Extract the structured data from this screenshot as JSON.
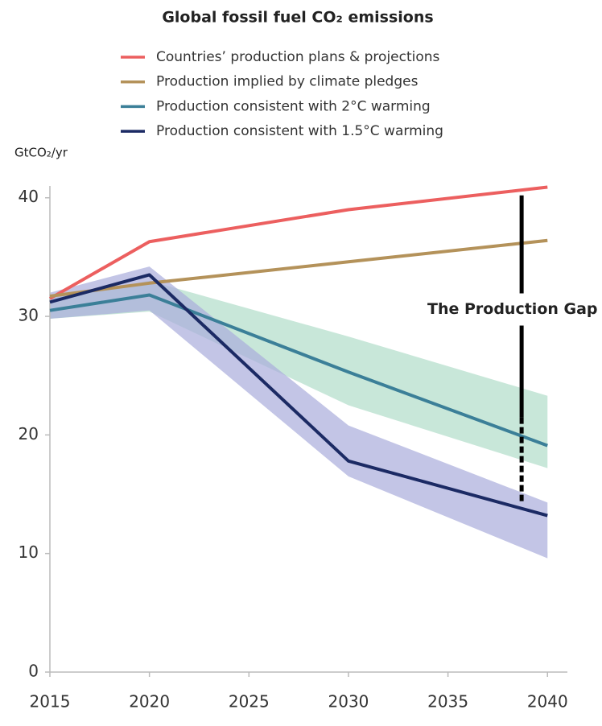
{
  "chart_data": {
    "type": "line",
    "title": "Global fossil fuel CO₂ emissions",
    "y_label": "GtCO₂/yr",
    "x": [
      2015,
      2020,
      2030,
      2040
    ],
    "series": [
      {
        "name": "Countries’ production plans & projections",
        "color": "#ec5f5f",
        "values": [
          31.5,
          36.3,
          39.0,
          40.9
        ]
      },
      {
        "name": "Production implied by  climate pledges",
        "color": "#b4925a",
        "values": [
          31.7,
          32.8,
          34.6,
          36.4
        ]
      },
      {
        "name": "Production consistent with 2°C warming",
        "color": "#3b7f98",
        "values": [
          30.5,
          31.8,
          25.3,
          19.1
        ]
      },
      {
        "name": "Production consistent with 1.5°C warming",
        "color": "#1b2a64",
        "values": [
          31.2,
          33.5,
          17.8,
          13.2
        ]
      }
    ],
    "bands": [
      {
        "color": "#b5dfcc",
        "lower": [
          29.8,
          30.4,
          22.5,
          17.2
        ],
        "upper": [
          31.5,
          33.0,
          28.3,
          23.3
        ]
      },
      {
        "color": "#a9acdb",
        "lower": [
          29.8,
          30.5,
          16.5,
          9.6
        ],
        "upper": [
          32.0,
          34.2,
          20.8,
          14.3
        ]
      }
    ],
    "annotation": {
      "text": "The Production Gap",
      "x": 2038.7,
      "y_top": 40.2,
      "y_bottom": 14.2
    },
    "xlim": [
      2015,
      2041
    ],
    "ylim": [
      0,
      41
    ],
    "xticks": [
      2015,
      2020,
      2025,
      2030,
      2035,
      2040
    ],
    "yticks": [
      0,
      10,
      20,
      30,
      40
    ]
  }
}
